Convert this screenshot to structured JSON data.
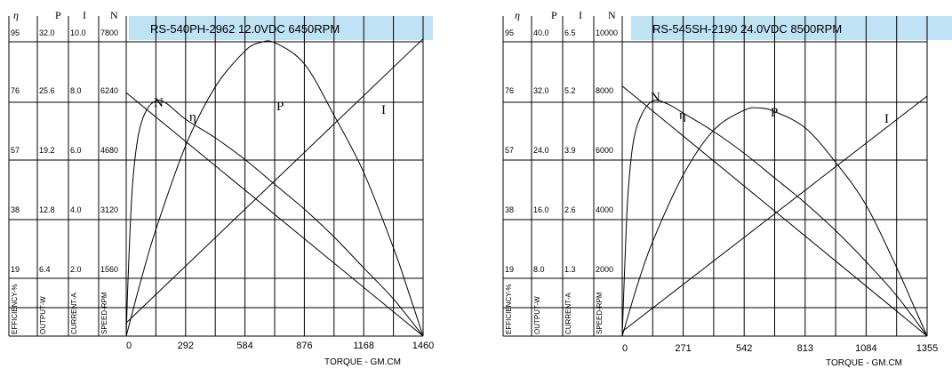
{
  "chart_data": [
    {
      "type": "line",
      "title": "RS-540PH-2962    12.0VDC    6450RPM",
      "column_headers": [
        "η",
        "P",
        "I",
        "N"
      ],
      "axis_titles": [
        "EFFICIENCY-%",
        "OUTPUT-W",
        "CURRENT-A",
        "SPEED-RPM"
      ],
      "left_ticks": {
        "efficiency": [
          "95",
          "76",
          "57",
          "38",
          "19"
        ],
        "output": [
          "32.0",
          "25.6",
          "19.2",
          "12.8",
          "6.4"
        ],
        "current": [
          "10.0",
          "8.0",
          "6.0",
          "4.0",
          "2.0"
        ],
        "speed": [
          "7800",
          "6240",
          "4680",
          "3120",
          "1560"
        ]
      },
      "x_ticks": [
        "0",
        "292",
        "584",
        "876",
        "1168",
        "1460"
      ],
      "xlabel": "TORQUE - GM.CM",
      "xlim": [
        0,
        1460
      ],
      "grid": true,
      "curve_labels": [
        "N",
        "η",
        "P",
        "I"
      ],
      "series": [
        {
          "name": "N",
          "unit": "RPM",
          "x": [
            0,
            1460
          ],
          "y": [
            6450,
            0
          ]
        },
        {
          "name": "I",
          "unit": "A",
          "x": [
            0,
            1460
          ],
          "y": [
            0.45,
            10.1
          ]
        },
        {
          "name": "P",
          "unit": "W",
          "x": [
            0,
            73,
            146,
            292,
            438,
            584,
            657,
            730,
            876,
            1022,
            1168,
            1314,
            1387,
            1460
          ],
          "y": [
            0,
            6.1,
            11.6,
            20.7,
            27.1,
            31.0,
            31.9,
            31.9,
            29.6,
            24.0,
            17.8,
            9.6,
            4.9,
            0
          ]
        },
        {
          "name": "η",
          "unit": "%",
          "x": [
            0,
            10,
            30,
            60,
            100,
            150,
            200,
            292,
            438,
            584,
            730,
            876,
            1022,
            1168,
            1314,
            1460
          ],
          "y": [
            0,
            20,
            48,
            65,
            73,
            76,
            75,
            70,
            64,
            57,
            49,
            41,
            32,
            22,
            12,
            0
          ]
        }
      ]
    },
    {
      "type": "line",
      "title": "RS-545SH-2190    24.0VDC    8500RPM",
      "column_headers": [
        "η",
        "P",
        "I",
        "N"
      ],
      "axis_titles": [
        "EFFICIENCY-%",
        "OUTPUT-W",
        "CURRENT-A",
        "SPEED-RPM"
      ],
      "left_ticks": {
        "efficiency": [
          "95",
          "76",
          "57",
          "38",
          "19"
        ],
        "output": [
          "40.0",
          "32.0",
          "24.0",
          "16.0",
          "8.0"
        ],
        "current": [
          "6.5",
          "5.2",
          "3.9",
          "2.6",
          "1.3"
        ],
        "speed": [
          "10000",
          "8000",
          "6000",
          "4000",
          "2000"
        ]
      },
      "x_ticks": [
        "0",
        "271",
        "542",
        "813",
        "1084",
        "1355"
      ],
      "xlabel": "TORQUE - GM.CM",
      "xlim": [
        0,
        1355
      ],
      "grid": true,
      "curve_labels": [
        "N",
        "η",
        "P",
        "I"
      ],
      "series": [
        {
          "name": "N",
          "unit": "RPM",
          "x": [
            0,
            1355
          ],
          "y": [
            8500,
            0
          ]
        },
        {
          "name": "I",
          "unit": "A",
          "x": [
            0,
            1355
          ],
          "y": [
            0.1,
            5.3
          ]
        },
        {
          "name": "P",
          "unit": "W",
          "x": [
            0,
            68,
            136,
            271,
            407,
            542,
            610,
            678,
            813,
            949,
            1084,
            1220,
            1290,
            1355
          ],
          "y": [
            0,
            7.0,
            12.9,
            21.9,
            28.0,
            30.7,
            31.0,
            30.5,
            28.3,
            23.6,
            17.8,
            9.3,
            4.5,
            0
          ]
        },
        {
          "name": "η",
          "unit": "%",
          "x": [
            0,
            10,
            25,
            50,
            90,
            140,
            200,
            271,
            407,
            542,
            678,
            813,
            949,
            1084,
            1220,
            1355
          ],
          "y": [
            0,
            20,
            45,
            63,
            72,
            76,
            75,
            72,
            66,
            59,
            51,
            43,
            34,
            24,
            13,
            0
          ]
        }
      ]
    }
  ]
}
